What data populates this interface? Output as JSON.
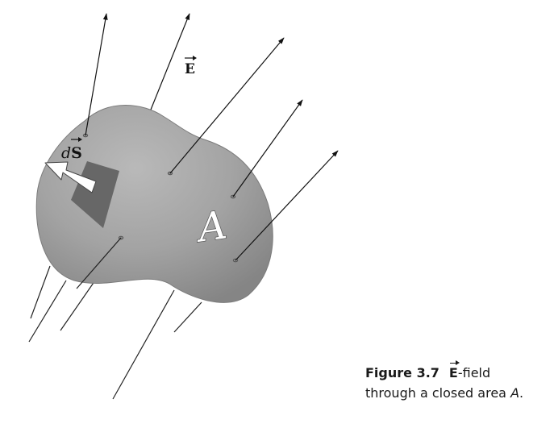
{
  "figure": {
    "field_label": "E",
    "area_label": "A",
    "ds_prefix": "d",
    "ds_symbol": "S"
  },
  "caption": {
    "number": "Figure 3.7",
    "vector_symbol": "E",
    "line1_rest": "-field",
    "line2_prefix": "through a closed area ",
    "line2_variable": "A",
    "line2_end": "."
  }
}
